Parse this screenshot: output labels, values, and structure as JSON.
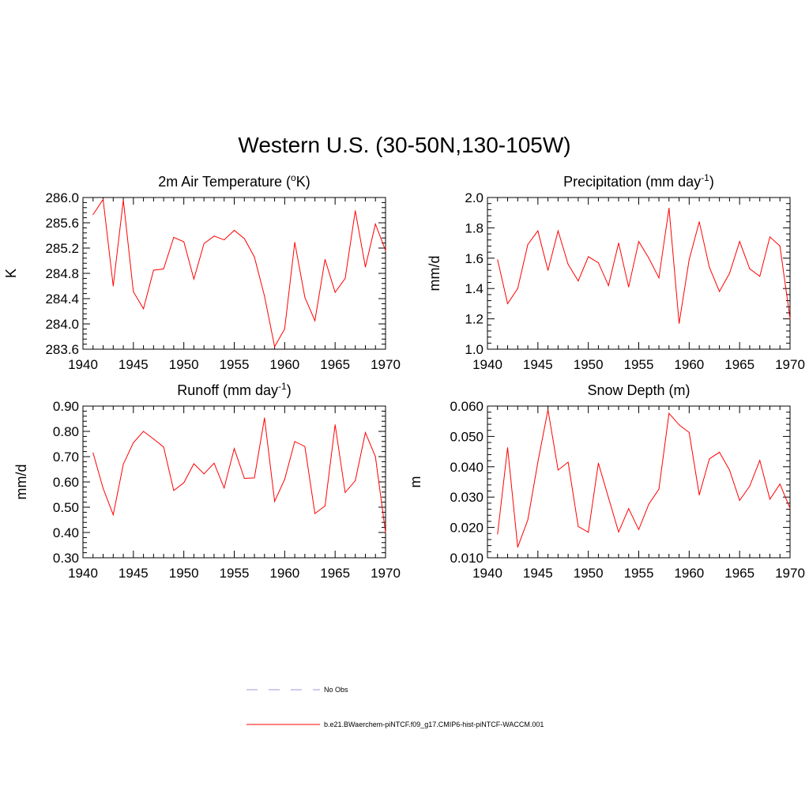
{
  "title": "Western U.S. (30-50N,130-105W)",
  "legend": {
    "entries": [
      {
        "label": "No Obs",
        "color": "#9999dd",
        "style": "dashed"
      },
      {
        "label": "b.e21.BWaerchem-piNTCF.f09_g17.CMIP6-hist-piNTCF-WACCM.001",
        "color": "#ff0000",
        "style": "solid"
      }
    ]
  },
  "chart_data": [
    {
      "type": "line",
      "title": "2m Air Temperature (",
      "title_sup": "o",
      "title_post": "K)",
      "ylabel": "K",
      "xlim": [
        1940,
        1970
      ],
      "ylim": [
        283.6,
        286.0
      ],
      "x_ticks": [
        1940,
        1945,
        1950,
        1955,
        1960,
        1965,
        1970
      ],
      "y_ticks": [
        283.6,
        284.0,
        284.4,
        284.8,
        285.2,
        285.6,
        286.0
      ],
      "y_tick_labels": [
        "283.6",
        "284.0",
        "284.4",
        "284.8",
        "285.2",
        "285.6",
        "286.0"
      ],
      "color": "#ff0000",
      "x": [
        1941,
        1942,
        1943,
        1944,
        1945,
        1946,
        1947,
        1948,
        1949,
        1950,
        1951,
        1952,
        1953,
        1954,
        1955,
        1956,
        1957,
        1958,
        1959,
        1960,
        1961,
        1962,
        1963,
        1964,
        1965,
        1966,
        1967,
        1968,
        1969,
        1970
      ],
      "y": [
        285.73,
        285.97,
        284.6,
        285.96,
        284.51,
        284.24,
        284.85,
        284.87,
        285.37,
        285.3,
        284.71,
        285.27,
        285.39,
        285.33,
        285.48,
        285.35,
        285.06,
        284.44,
        283.64,
        283.92,
        285.29,
        284.42,
        284.05,
        285.02,
        284.5,
        284.72,
        285.79,
        284.9,
        285.58,
        285.16
      ]
    },
    {
      "type": "line",
      "title": "Precipitation (mm day",
      "title_sup": "-1",
      "title_post": ")",
      "ylabel": "mm/d",
      "xlim": [
        1940,
        1970
      ],
      "ylim": [
        1.0,
        2.0
      ],
      "x_ticks": [
        1940,
        1945,
        1950,
        1955,
        1960,
        1965,
        1970
      ],
      "y_ticks": [
        1.0,
        1.2,
        1.4,
        1.6,
        1.8,
        2.0
      ],
      "y_tick_labels": [
        "1.0",
        "1.2",
        "1.4",
        "1.6",
        "1.8",
        "2.0"
      ],
      "color": "#ff0000",
      "x": [
        1941,
        1942,
        1943,
        1944,
        1945,
        1946,
        1947,
        1948,
        1949,
        1950,
        1951,
        1952,
        1953,
        1954,
        1955,
        1956,
        1957,
        1958,
        1959,
        1960,
        1961,
        1962,
        1963,
        1964,
        1965,
        1966,
        1967,
        1968,
        1969,
        1970
      ],
      "y": [
        1.59,
        1.3,
        1.4,
        1.69,
        1.78,
        1.52,
        1.78,
        1.56,
        1.45,
        1.61,
        1.57,
        1.42,
        1.7,
        1.41,
        1.71,
        1.6,
        1.47,
        1.93,
        1.17,
        1.59,
        1.84,
        1.54,
        1.38,
        1.5,
        1.71,
        1.53,
        1.48,
        1.74,
        1.68,
        1.2
      ]
    },
    {
      "type": "line",
      "title": "Runoff (mm day",
      "title_sup": "-1",
      "title_post": ")",
      "ylabel": "mm/d",
      "xlim": [
        1940,
        1970
      ],
      "ylim": [
        0.3,
        0.9
      ],
      "x_ticks": [
        1940,
        1945,
        1950,
        1955,
        1960,
        1965,
        1970
      ],
      "y_ticks": [
        0.3,
        0.4,
        0.5,
        0.6,
        0.7,
        0.8,
        0.9
      ],
      "y_tick_labels": [
        "0.30",
        "0.40",
        "0.50",
        "0.60",
        "0.70",
        "0.80",
        "0.90"
      ],
      "color": "#ff0000",
      "x": [
        1941,
        1942,
        1943,
        1944,
        1945,
        1946,
        1947,
        1948,
        1949,
        1950,
        1951,
        1952,
        1953,
        1954,
        1955,
        1956,
        1957,
        1958,
        1959,
        1960,
        1961,
        1962,
        1963,
        1964,
        1965,
        1966,
        1967,
        1968,
        1969,
        1970
      ],
      "y": [
        0.715,
        0.575,
        0.47,
        0.67,
        0.755,
        0.8,
        0.77,
        0.738,
        0.566,
        0.597,
        0.672,
        0.632,
        0.674,
        0.576,
        0.732,
        0.614,
        0.616,
        0.853,
        0.523,
        0.61,
        0.76,
        0.74,
        0.475,
        0.505,
        0.826,
        0.558,
        0.605,
        0.795,
        0.7,
        0.4
      ]
    },
    {
      "type": "line",
      "title": "Snow Depth (m)",
      "title_sup": "",
      "title_post": "",
      "ylabel": "m",
      "xlim": [
        1940,
        1970
      ],
      "ylim": [
        0.01,
        0.06
      ],
      "x_ticks": [
        1940,
        1945,
        1950,
        1955,
        1960,
        1965,
        1970
      ],
      "y_ticks": [
        0.01,
        0.02,
        0.03,
        0.04,
        0.05,
        0.06
      ],
      "y_tick_labels": [
        "0.010",
        "0.020",
        "0.030",
        "0.040",
        "0.050",
        "0.060"
      ],
      "color": "#ff0000",
      "x": [
        1941,
        1942,
        1943,
        1944,
        1945,
        1946,
        1947,
        1948,
        1949,
        1950,
        1951,
        1952,
        1953,
        1954,
        1955,
        1956,
        1957,
        1958,
        1959,
        1960,
        1961,
        1962,
        1963,
        1964,
        1965,
        1966,
        1967,
        1968,
        1969,
        1970
      ],
      "y": [
        0.0178,
        0.0463,
        0.0135,
        0.0225,
        0.0415,
        0.0588,
        0.0389,
        0.0415,
        0.0203,
        0.0184,
        0.0412,
        0.0298,
        0.0185,
        0.0262,
        0.0193,
        0.0277,
        0.0326,
        0.0576,
        0.0538,
        0.0513,
        0.0307,
        0.0426,
        0.0448,
        0.0389,
        0.0289,
        0.0336,
        0.0421,
        0.0293,
        0.0343,
        0.0263
      ]
    }
  ]
}
